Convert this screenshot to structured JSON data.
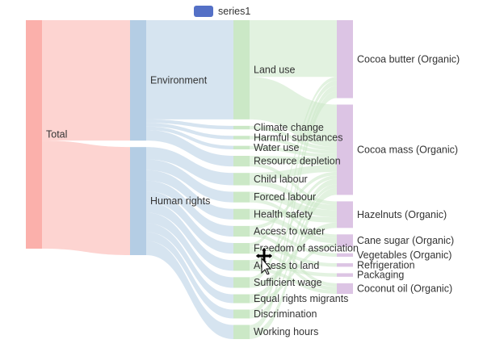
{
  "chart_data": {
    "type": "sankey",
    "legend": [
      {
        "name": "series1",
        "color": "#5470c6"
      }
    ],
    "legend_position": "top-center",
    "nodes": [
      {
        "name": "Total",
        "column": 0,
        "color": "#fbb0ab",
        "label_side": "right"
      },
      {
        "name": "Environment",
        "column": 1,
        "color": "#b4cde4",
        "label_side": "right"
      },
      {
        "name": "Human rights",
        "column": 1,
        "color": "#b4cde4",
        "label_side": "right"
      },
      {
        "name": "Land use",
        "column": 2,
        "color": "#cbe8c6",
        "label_side": "right"
      },
      {
        "name": "Climate change",
        "column": 2,
        "color": "#cbe8c6",
        "label_side": "right"
      },
      {
        "name": "Harmful substances",
        "column": 2,
        "color": "#cbe8c6",
        "label_side": "right"
      },
      {
        "name": "Water use",
        "column": 2,
        "color": "#cbe8c6",
        "label_side": "right"
      },
      {
        "name": "Resource depletion",
        "column": 2,
        "color": "#cbe8c6",
        "label_side": "right"
      },
      {
        "name": "Child labour",
        "column": 2,
        "color": "#cbe8c6",
        "label_side": "right"
      },
      {
        "name": "Forced labour",
        "column": 2,
        "color": "#cbe8c6",
        "label_side": "right"
      },
      {
        "name": "Health safety",
        "column": 2,
        "color": "#cbe8c6",
        "label_side": "right"
      },
      {
        "name": "Access to water",
        "column": 2,
        "color": "#cbe8c6",
        "label_side": "right"
      },
      {
        "name": "Freedom of association",
        "column": 2,
        "color": "#cbe8c6",
        "label_side": "right"
      },
      {
        "name": "Access to land",
        "column": 2,
        "color": "#cbe8c6",
        "label_side": "right"
      },
      {
        "name": "Sufficient wage",
        "column": 2,
        "color": "#cbe8c6",
        "label_side": "right"
      },
      {
        "name": "Equal rights migrants",
        "column": 2,
        "color": "#cbe8c6",
        "label_side": "right"
      },
      {
        "name": "Discrimination",
        "column": 2,
        "color": "#cbe8c6",
        "label_side": "right"
      },
      {
        "name": "Working hours",
        "column": 2,
        "color": "#cbe8c6",
        "label_side": "right"
      },
      {
        "name": "Cocoa butter (Organic)",
        "column": 3,
        "color": "#dcc4e4",
        "label_side": "right"
      },
      {
        "name": "Cocoa mass (Organic)",
        "column": 3,
        "color": "#dcc4e4",
        "label_side": "right"
      },
      {
        "name": "Hazelnuts (Organic)",
        "column": 3,
        "color": "#dcc4e4",
        "label_side": "right"
      },
      {
        "name": "Cane sugar (Organic)",
        "column": 3,
        "color": "#dcc4e4",
        "label_side": "right"
      },
      {
        "name": "Vegetables (Organic)",
        "column": 3,
        "color": "#dcc4e4",
        "label_side": "right"
      },
      {
        "name": "Refrigeration",
        "column": 3,
        "color": "#dcc4e4",
        "label_side": "right"
      },
      {
        "name": "Packaging",
        "column": 3,
        "color": "#dcc4e4",
        "label_side": "right"
      },
      {
        "name": "Coconut oil (Organic)",
        "column": 3,
        "color": "#dcc4e4",
        "label_side": "right"
      }
    ],
    "links": [
      {
        "source": "Total",
        "target": "Environment",
        "value": 0.34
      },
      {
        "source": "Total",
        "target": "Human rights",
        "value": 0.305
      },
      {
        "source": "Environment",
        "target": "Land use",
        "value": 0.28
      },
      {
        "source": "Environment",
        "target": "Climate change",
        "value": 0.01
      },
      {
        "source": "Environment",
        "target": "Harmful substances",
        "value": 0.01
      },
      {
        "source": "Environment",
        "target": "Water use",
        "value": 0.01
      },
      {
        "source": "Environment",
        "target": "Resource depletion",
        "value": 0.03
      },
      {
        "source": "Human rights",
        "target": "Child labour",
        "value": 0.035
      },
      {
        "source": "Human rights",
        "target": "Forced labour",
        "value": 0.03
      },
      {
        "source": "Human rights",
        "target": "Health safety",
        "value": 0.03
      },
      {
        "source": "Human rights",
        "target": "Access to water",
        "value": 0.03
      },
      {
        "source": "Human rights",
        "target": "Freedom of association",
        "value": 0.03
      },
      {
        "source": "Human rights",
        "target": "Access to land",
        "value": 0.03
      },
      {
        "source": "Human rights",
        "target": "Sufficient wage",
        "value": 0.03
      },
      {
        "source": "Human rights",
        "target": "Equal rights migrants",
        "value": 0.025
      },
      {
        "source": "Human rights",
        "target": "Discrimination",
        "value": 0.025
      },
      {
        "source": "Human rights",
        "target": "Working hours",
        "value": 0.04
      },
      {
        "source": "Land use",
        "target": "Cocoa butter (Organic)",
        "value": 0.16
      },
      {
        "source": "Land use",
        "target": "Cocoa mass (Organic)",
        "value": 0.12
      },
      {
        "source": "Climate change",
        "target": "Cocoa mass (Organic)",
        "value": 0.01
      },
      {
        "source": "Harmful substances",
        "target": "Cocoa mass (Organic)",
        "value": 0.01
      },
      {
        "source": "Water use",
        "target": "Cocoa mass (Organic)",
        "value": 0.01
      },
      {
        "source": "Resource depletion",
        "target": "Cocoa mass (Organic)",
        "value": 0.02
      },
      {
        "source": "Resource depletion",
        "target": "Hazelnuts (Organic)",
        "value": 0.01
      },
      {
        "source": "Child labour",
        "target": "Cocoa mass (Organic)",
        "value": 0.02
      },
      {
        "source": "Child labour",
        "target": "Hazelnuts (Organic)",
        "value": 0.015
      },
      {
        "source": "Forced labour",
        "target": "Hazelnuts (Organic)",
        "value": 0.02
      },
      {
        "source": "Forced labour",
        "target": "Cane sugar (Organic)",
        "value": 0.01
      },
      {
        "source": "Health safety",
        "target": "Hazelnuts (Organic)",
        "value": 0.015
      },
      {
        "source": "Health safety",
        "target": "Cane sugar (Organic)",
        "value": 0.015
      },
      {
        "source": "Access to water",
        "target": "Cocoa mass (Organic)",
        "value": 0.01
      },
      {
        "source": "Access to water",
        "target": "Vegetables (Organic)",
        "value": 0.01
      },
      {
        "source": "Access to water",
        "target": "Coconut oil (Organic)",
        "value": 0.01
      },
      {
        "source": "Freedom of association",
        "target": "Cocoa butter (Organic)",
        "value": 0.01
      },
      {
        "source": "Freedom of association",
        "target": "Refrigeration",
        "value": 0.01
      },
      {
        "source": "Freedom of association",
        "target": "Coconut oil (Organic)",
        "value": 0.01
      },
      {
        "source": "Access to land",
        "target": "Cocoa mass (Organic)",
        "value": 0.01
      },
      {
        "source": "Access to land",
        "target": "Packaging",
        "value": 0.01
      },
      {
        "source": "Access to land",
        "target": "Coconut oil (Organic)",
        "value": 0.01
      },
      {
        "source": "Sufficient wage",
        "target": "Cocoa butter (Organic)",
        "value": 0.015
      },
      {
        "source": "Sufficient wage",
        "target": "Hazelnuts (Organic)",
        "value": 0.015
      },
      {
        "source": "Equal rights migrants",
        "target": "Cocoa mass (Organic)",
        "value": 0.015
      },
      {
        "source": "Equal rights migrants",
        "target": "Cane sugar (Organic)",
        "value": 0.01
      },
      {
        "source": "Discrimination",
        "target": "Cocoa butter (Organic)",
        "value": 0.015
      },
      {
        "source": "Discrimination",
        "target": "Cocoa mass (Organic)",
        "value": 0.01
      },
      {
        "source": "Working hours",
        "target": "Cocoa butter (Organic)",
        "value": 0.02
      },
      {
        "source": "Working hours",
        "target": "Cocoa mass (Organic)",
        "value": 0.02
      }
    ]
  }
}
